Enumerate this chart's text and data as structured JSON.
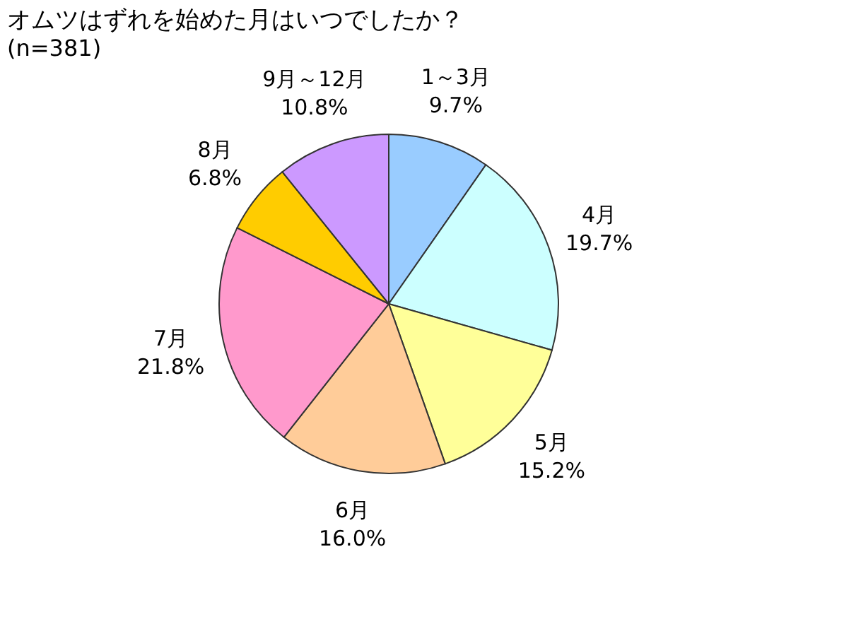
{
  "chart_data": {
    "type": "pie",
    "title": "オムツはずれを始めた月はいつでしたか？",
    "subtitle": "(n=381)",
    "categories": [
      "1～3月",
      "4月",
      "5月",
      "6月",
      "7月",
      "8月",
      "9月～12月"
    ],
    "values": [
      9.7,
      19.7,
      15.2,
      16.0,
      21.8,
      6.8,
      10.8
    ],
    "value_labels": [
      "9.7%",
      "19.7%",
      "15.2%",
      "16.0%",
      "21.8%",
      "6.8%",
      "10.8%"
    ],
    "colors": [
      "#99ccff",
      "#ccffff",
      "#ffff99",
      "#ffcc99",
      "#ff99cc",
      "#ffcc00",
      "#cc99ff"
    ],
    "legend": false
  }
}
